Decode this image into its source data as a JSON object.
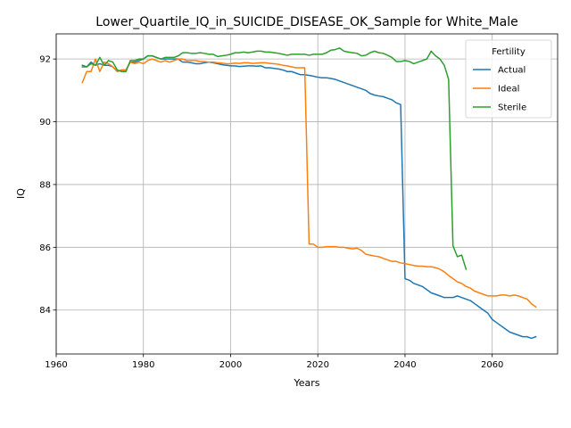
{
  "chart_data": {
    "type": "line",
    "title": "Lower_Quartile_IQ_in_SUICIDE_DISEASE_OK_Sample for White_Male",
    "xlabel": "Years",
    "ylabel": "IQ",
    "xlim": [
      1960,
      2075
    ],
    "ylim": [
      82.6,
      92.8
    ],
    "xticks": [
      1960,
      1980,
      2000,
      2020,
      2040,
      2060
    ],
    "yticks": [
      84,
      86,
      88,
      90,
      92
    ],
    "grid": true,
    "legend": {
      "title": "Fertility",
      "placement": "top-right"
    },
    "colors": {
      "Actual": "#1f77b4",
      "Ideal": "#ff7f0e",
      "Sterile": "#2ca02c"
    },
    "series": [
      {
        "name": "Actual",
        "x": [
          1966,
          1967,
          1968,
          1969,
          1970,
          1971,
          1972,
          1973,
          1974,
          1975,
          1976,
          1977,
          1978,
          1979,
          1980,
          1981,
          1982,
          1983,
          1984,
          1985,
          1986,
          1987,
          1988,
          1989,
          1990,
          1991,
          1992,
          1993,
          1994,
          1995,
          1996,
          1997,
          1998,
          1999,
          2000,
          2001,
          2002,
          2003,
          2004,
          2005,
          2006,
          2007,
          2008,
          2009,
          2010,
          2011,
          2012,
          2013,
          2014,
          2015,
          2016,
          2017,
          2018,
          2019,
          2020,
          2021,
          2022,
          2023,
          2024,
          2025,
          2026,
          2027,
          2028,
          2029,
          2030,
          2031,
          2032,
          2033,
          2034,
          2035,
          2036,
          2037,
          2038,
          2039,
          2040,
          2041,
          2042,
          2043,
          2044,
          2045,
          2046,
          2047,
          2048,
          2049,
          2050,
          2051,
          2052,
          2053,
          2054,
          2055,
          2056,
          2057,
          2058,
          2059,
          2060,
          2061,
          2062,
          2063,
          2064,
          2065,
          2066,
          2067,
          2068,
          2069,
          2070
        ],
        "y": [
          91.8,
          91.75,
          91.9,
          91.8,
          91.85,
          91.8,
          91.8,
          91.75,
          91.6,
          91.65,
          91.65,
          91.9,
          91.9,
          91.95,
          92.0,
          92.1,
          92.1,
          92.05,
          92.0,
          92.0,
          92.0,
          92.0,
          92.0,
          91.9,
          91.9,
          91.88,
          91.85,
          91.85,
          91.88,
          91.9,
          91.88,
          91.85,
          91.82,
          91.8,
          91.78,
          91.78,
          91.76,
          91.77,
          91.78,
          91.78,
          91.77,
          91.78,
          91.72,
          91.72,
          91.7,
          91.68,
          91.65,
          91.6,
          91.6,
          91.55,
          91.5,
          91.5,
          91.48,
          91.45,
          91.42,
          91.4,
          91.4,
          91.38,
          91.35,
          91.3,
          91.25,
          91.2,
          91.15,
          91.1,
          91.05,
          91.0,
          90.9,
          90.85,
          90.82,
          90.8,
          90.75,
          90.7,
          90.6,
          90.55,
          85.0,
          84.95,
          84.85,
          84.8,
          84.75,
          84.65,
          84.55,
          84.5,
          84.45,
          84.4,
          84.4,
          84.4,
          84.45,
          84.4,
          84.35,
          84.3,
          84.2,
          84.1,
          84.0,
          83.9,
          83.7,
          83.6,
          83.5,
          83.4,
          83.3,
          83.25,
          83.2,
          83.15,
          83.15,
          83.1,
          83.15
        ]
      },
      {
        "name": "Ideal",
        "x": [
          1966,
          1967,
          1968,
          1969,
          1970,
          1971,
          1972,
          1973,
          1974,
          1975,
          1976,
          1977,
          1978,
          1979,
          1980,
          1981,
          1982,
          1983,
          1984,
          1985,
          1986,
          1987,
          1988,
          1989,
          1990,
          1991,
          1992,
          1993,
          1994,
          1995,
          1996,
          1997,
          1998,
          1999,
          2000,
          2001,
          2002,
          2003,
          2004,
          2005,
          2006,
          2007,
          2008,
          2009,
          2010,
          2011,
          2012,
          2013,
          2014,
          2015,
          2016,
          2017,
          2018,
          2019,
          2020,
          2021,
          2022,
          2023,
          2024,
          2025,
          2026,
          2027,
          2028,
          2029,
          2030,
          2031,
          2032,
          2033,
          2034,
          2035,
          2036,
          2037,
          2038,
          2039,
          2040,
          2041,
          2042,
          2043,
          2044,
          2045,
          2046,
          2047,
          2048,
          2049,
          2050,
          2051,
          2052,
          2053,
          2054,
          2055,
          2056,
          2057,
          2058,
          2059,
          2060,
          2061,
          2062,
          2063,
          2064,
          2065,
          2066,
          2067,
          2068,
          2069,
          2070
        ],
        "y": [
          91.25,
          91.6,
          91.6,
          92.0,
          91.6,
          91.9,
          91.85,
          91.75,
          91.6,
          91.65,
          91.65,
          91.9,
          91.85,
          91.9,
          91.85,
          91.95,
          92.0,
          91.95,
          91.9,
          91.95,
          91.9,
          91.95,
          92.0,
          92.0,
          91.95,
          91.95,
          91.95,
          91.92,
          91.92,
          91.9,
          91.9,
          91.88,
          91.87,
          91.85,
          91.85,
          91.87,
          91.86,
          91.88,
          91.88,
          91.86,
          91.87,
          91.88,
          91.88,
          91.86,
          91.85,
          91.83,
          91.8,
          91.78,
          91.75,
          91.72,
          91.72,
          91.72,
          86.1,
          86.1,
          86.0,
          86.0,
          86.02,
          86.02,
          86.02,
          86.0,
          86.0,
          85.97,
          85.95,
          85.97,
          85.9,
          85.78,
          85.75,
          85.72,
          85.7,
          85.65,
          85.6,
          85.55,
          85.55,
          85.5,
          85.48,
          85.45,
          85.42,
          85.4,
          85.4,
          85.38,
          85.38,
          85.35,
          85.3,
          85.22,
          85.1,
          85.0,
          84.9,
          84.85,
          84.75,
          84.7,
          84.6,
          84.55,
          84.5,
          84.45,
          84.45,
          84.45,
          84.48,
          84.48,
          84.45,
          84.48,
          84.45,
          84.4,
          84.35,
          84.2,
          84.1
        ]
      },
      {
        "name": "Sterile",
        "x": [
          1966,
          1967,
          1968,
          1969,
          1970,
          1971,
          1972,
          1973,
          1974,
          1975,
          1976,
          1977,
          1978,
          1979,
          1980,
          1981,
          1982,
          1983,
          1984,
          1985,
          1986,
          1987,
          1988,
          1989,
          1990,
          1991,
          1992,
          1993,
          1994,
          1995,
          1996,
          1997,
          1998,
          1999,
          2000,
          2001,
          2002,
          2003,
          2004,
          2005,
          2006,
          2007,
          2008,
          2009,
          2010,
          2011,
          2012,
          2013,
          2014,
          2015,
          2016,
          2017,
          2018,
          2019,
          2020,
          2021,
          2022,
          2023,
          2024,
          2025,
          2026,
          2027,
          2028,
          2029,
          2030,
          2031,
          2032,
          2033,
          2034,
          2035,
          2036,
          2037,
          2038,
          2039,
          2040,
          2041,
          2042,
          2043,
          2044,
          2045,
          2046,
          2047,
          2048,
          2049,
          2050,
          2051,
          2052,
          2053,
          2054
        ],
        "y": [
          91.75,
          91.75,
          91.85,
          91.8,
          92.05,
          91.8,
          91.95,
          91.9,
          91.65,
          91.6,
          91.6,
          91.95,
          91.95,
          92.0,
          92.0,
          92.1,
          92.1,
          92.05,
          92.0,
          92.05,
          92.05,
          92.05,
          92.1,
          92.2,
          92.2,
          92.18,
          92.18,
          92.2,
          92.18,
          92.15,
          92.15,
          92.08,
          92.1,
          92.12,
          92.15,
          92.2,
          92.2,
          92.22,
          92.2,
          92.22,
          92.25,
          92.25,
          92.22,
          92.22,
          92.2,
          92.18,
          92.15,
          92.12,
          92.15,
          92.15,
          92.15,
          92.15,
          92.12,
          92.15,
          92.15,
          92.15,
          92.2,
          92.28,
          92.3,
          92.35,
          92.25,
          92.22,
          92.2,
          92.18,
          92.1,
          92.12,
          92.2,
          92.25,
          92.2,
          92.18,
          92.12,
          92.05,
          91.92,
          91.92,
          91.95,
          91.92,
          91.85,
          91.9,
          91.95,
          92.0,
          92.25,
          92.1,
          92.0,
          91.8,
          91.35,
          86.05,
          85.7,
          85.75,
          85.3
        ]
      }
    ]
  }
}
